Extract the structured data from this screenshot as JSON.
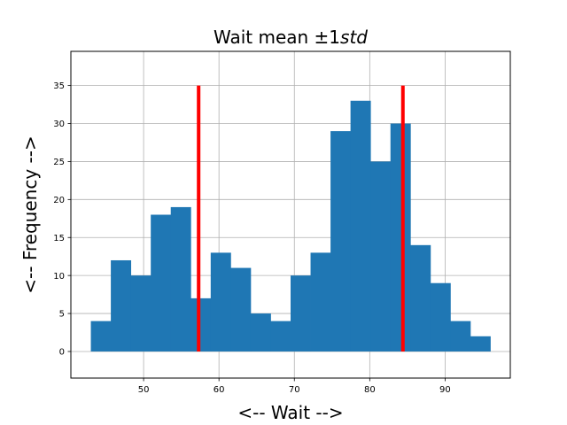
{
  "chart_data": {
    "type": "bar",
    "title": "Wait mean ±1",
    "title_italic": "std",
    "xlabel": "<-- Wait -->",
    "ylabel": "<-- Frequency -->",
    "xlim": [
      40.35,
      98.65
    ],
    "ylim": [
      -3.5,
      39.5
    ],
    "grid": true,
    "bar_color": "#1f77b4",
    "bin_edges": [
      43,
      45.65,
      48.3,
      50.95,
      53.6,
      56.25,
      58.9,
      61.55,
      64.2,
      66.85,
      69.5,
      72.15,
      74.8,
      77.45,
      80.1,
      82.75,
      85.4,
      88.05,
      90.7,
      93.35,
      96
    ],
    "counts": [
      4,
      12,
      10,
      18,
      19,
      7,
      13,
      11,
      5,
      4,
      10,
      13,
      29,
      33,
      25,
      30,
      14,
      9,
      4,
      2
    ],
    "x_ticks": [
      50,
      60,
      70,
      80,
      90
    ],
    "y_ticks": [
      0,
      5,
      10,
      15,
      20,
      25,
      30,
      35
    ],
    "vlines": [
      {
        "x": 57.3,
        "ymin": 0,
        "ymax": 35,
        "color": "#ff0000"
      },
      {
        "x": 84.4,
        "ymin": 0,
        "ymax": 35,
        "color": "#ff0000"
      }
    ]
  }
}
